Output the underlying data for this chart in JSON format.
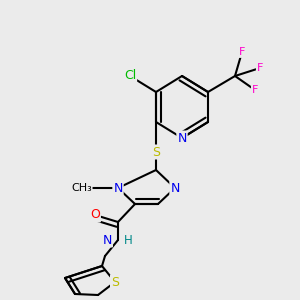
{
  "background_color": "#ebebeb",
  "fig_size": [
    3.0,
    3.0
  ],
  "dpi": 100,
  "atom_colors": {
    "C": "#000000",
    "N": "#0000ee",
    "O": "#ff0000",
    "S": "#bbbb00",
    "Cl": "#00bb00",
    "F": "#ff00cc",
    "H": "#008888"
  },
  "bond_color": "#000000",
  "bond_width": 1.5
}
